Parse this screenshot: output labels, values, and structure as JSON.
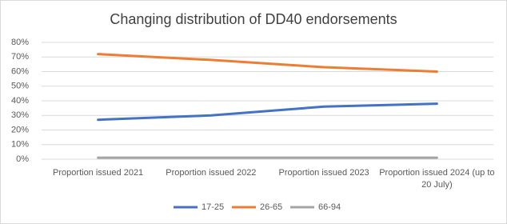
{
  "chart_data": {
    "type": "line",
    "title": "Changing distribution of DD40 endorsements",
    "categories": [
      "Proportion issued 2021",
      "Proportion issued 2022",
      "Proportion issued 2023",
      "Proportion issued 2024 (up to 20 July)"
    ],
    "series": [
      {
        "name": "17-25",
        "color": "#4472c4",
        "values": [
          27,
          30,
          36,
          38
        ]
      },
      {
        "name": "26-65",
        "color": "#ed7d31",
        "values": [
          72,
          68,
          63,
          60
        ]
      },
      {
        "name": "66-94",
        "color": "#a5a5a5",
        "values": [
          1,
          1,
          1,
          1
        ]
      }
    ],
    "ylim": [
      0,
      80
    ],
    "yticks": [
      {
        "value": 0,
        "label": "0%"
      },
      {
        "value": 10,
        "label": "10%"
      },
      {
        "value": 20,
        "label": "20%"
      },
      {
        "value": 30,
        "label": "30%"
      },
      {
        "value": 40,
        "label": "40%"
      },
      {
        "value": 50,
        "label": "50%"
      },
      {
        "value": 60,
        "label": "60%"
      },
      {
        "value": 70,
        "label": "70%"
      },
      {
        "value": 80,
        "label": "80%"
      }
    ],
    "grid": true
  }
}
